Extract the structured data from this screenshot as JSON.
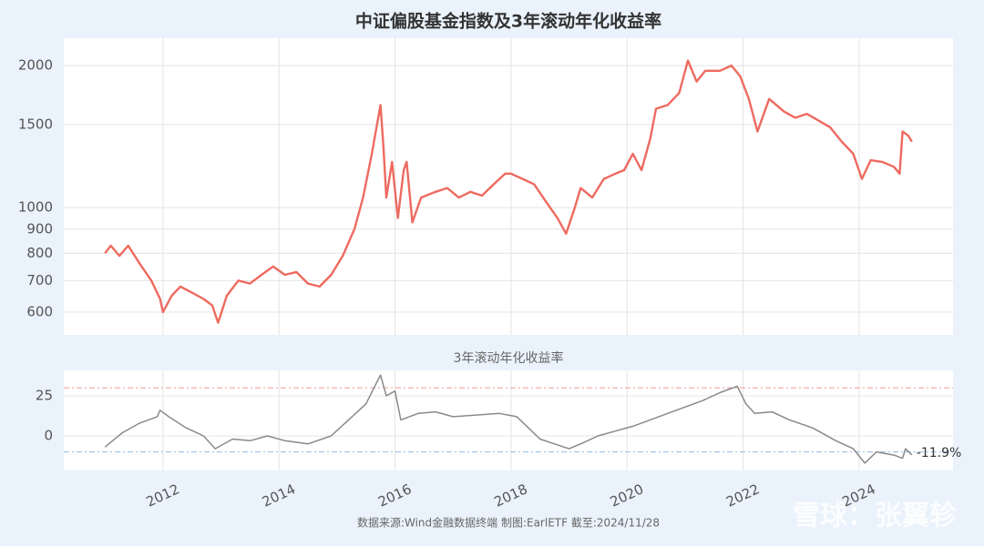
{
  "chart_data": [
    {
      "type": "line",
      "title": "中证偏股基金指数及3年滚动年化收益率",
      "log_y": true,
      "grid": true,
      "xlim": [
        2010.29,
        2025.62
      ],
      "xticks": [
        2012,
        2014,
        2016,
        2018,
        2020,
        2022,
        2024
      ],
      "ylim": [
        537,
        2286
      ],
      "yticks": [
        600,
        700,
        800,
        900,
        1000,
        1500,
        2000
      ],
      "x": [
        2011.0,
        2011.1,
        2011.25,
        2011.4,
        2011.6,
        2011.8,
        2011.95,
        2012.0,
        2012.15,
        2012.3,
        2012.5,
        2012.7,
        2012.85,
        2012.95,
        2013.1,
        2013.3,
        2013.5,
        2013.7,
        2013.9,
        2014.1,
        2014.3,
        2014.5,
        2014.7,
        2014.9,
        2015.1,
        2015.3,
        2015.45,
        2015.6,
        2015.75,
        2015.8,
        2015.85,
        2015.95,
        2016.05,
        2016.15,
        2016.2,
        2016.3,
        2016.45,
        2016.7,
        2016.9,
        2017.1,
        2017.3,
        2017.5,
        2017.7,
        2017.9,
        2018.0,
        2018.2,
        2018.4,
        2018.6,
        2018.8,
        2018.95,
        2019.1,
        2019.2,
        2019.4,
        2019.6,
        2019.8,
        2019.95,
        2020.1,
        2020.25,
        2020.4,
        2020.5,
        2020.7,
        2020.9,
        2021.05,
        2021.2,
        2021.35,
        2021.6,
        2021.8,
        2021.95,
        2022.1,
        2022.25,
        2022.45,
        2022.7,
        2022.9,
        2023.1,
        2023.3,
        2023.5,
        2023.7,
        2023.9,
        2024.05,
        2024.2,
        2024.4,
        2024.6,
        2024.7,
        2024.75,
        2024.85,
        2024.91
      ],
      "series": [
        {
          "name": "中证偏股基金指数",
          "color": "#ee6a60",
          "values": [
            800,
            830,
            790,
            830,
            760,
            700,
            640,
            600,
            650,
            680,
            660,
            640,
            620,
            570,
            650,
            700,
            690,
            720,
            750,
            720,
            730,
            690,
            680,
            720,
            790,
            900,
            1050,
            1300,
            1650,
            1350,
            1050,
            1250,
            950,
            1200,
            1250,
            930,
            1050,
            1080,
            1100,
            1050,
            1080,
            1060,
            1120,
            1180,
            1180,
            1150,
            1120,
            1030,
            950,
            880,
            1000,
            1100,
            1050,
            1150,
            1180,
            1200,
            1300,
            1200,
            1400,
            1620,
            1650,
            1750,
            2050,
            1850,
            1950,
            1950,
            2000,
            1900,
            1700,
            1450,
            1700,
            1600,
            1550,
            1580,
            1530,
            1480,
            1380,
            1300,
            1150,
            1260,
            1250,
            1220,
            1180,
            1450,
            1420,
            1380
          ]
        }
      ]
    },
    {
      "type": "line",
      "title": "3年滚动年化收益率",
      "grid": true,
      "xlim": [
        2010.29,
        2025.62
      ],
      "xticks": [
        2012,
        2014,
        2016,
        2018,
        2020,
        2022,
        2024
      ],
      "ylim": [
        -21.6,
        40.9
      ],
      "yticks": [
        0,
        25
      ],
      "hlines": [
        {
          "value": 30,
          "color": "#f2a5a5"
        },
        {
          "value": -10,
          "color": "#9fc0ea"
        }
      ],
      "x": [
        2011.0,
        2011.3,
        2011.6,
        2011.9,
        2011.95,
        2012.1,
        2012.4,
        2012.7,
        2012.9,
        2013.2,
        2013.5,
        2013.8,
        2014.1,
        2014.5,
        2014.9,
        2015.2,
        2015.5,
        2015.75,
        2015.85,
        2016.0,
        2016.1,
        2016.4,
        2016.7,
        2017.0,
        2017.4,
        2017.8,
        2018.1,
        2018.3,
        2018.5,
        2018.75,
        2019.0,
        2019.2,
        2019.5,
        2019.8,
        2020.1,
        2020.4,
        2020.7,
        2021.0,
        2021.3,
        2021.6,
        2021.9,
        2022.05,
        2022.2,
        2022.5,
        2022.8,
        2023.2,
        2023.6,
        2023.9,
        2024.1,
        2024.3,
        2024.6,
        2024.75,
        2024.8,
        2024.91
      ],
      "series": [
        {
          "name": "3年滚动年化收益率",
          "color": "#8a8a8a",
          "values": [
            -7,
            2,
            8,
            12,
            16,
            12,
            5,
            0,
            -8,
            -2,
            -3,
            0,
            -3,
            -5,
            0,
            10,
            20,
            38,
            25,
            28,
            10,
            14,
            15,
            12,
            13,
            14,
            12,
            5,
            -2,
            -5,
            -8,
            -5,
            0,
            3,
            6,
            10,
            14,
            18,
            22,
            27,
            31,
            20,
            14,
            15,
            10,
            5,
            -3,
            -8,
            -17,
            -10,
            -12,
            -14,
            -8,
            -11.9
          ],
          "value_labels": [
            null,
            null,
            null,
            null,
            null,
            null,
            null,
            null,
            null,
            null,
            null,
            null,
            null,
            null,
            null,
            null,
            null,
            null,
            null,
            null,
            null,
            null,
            null,
            null,
            null,
            null,
            null,
            null,
            null,
            null,
            null,
            null,
            null,
            null,
            null,
            null,
            null,
            null,
            null,
            null,
            null,
            null,
            null,
            null,
            null,
            null,
            null,
            null,
            null,
            null,
            null,
            null,
            null,
            "-11.9%"
          ]
        }
      ]
    }
  ],
  "source": "数据来源:Wind金融数据终端  制图:EarlETF 截至:2024/11/28",
  "watermark": "雪球：张翼轸"
}
